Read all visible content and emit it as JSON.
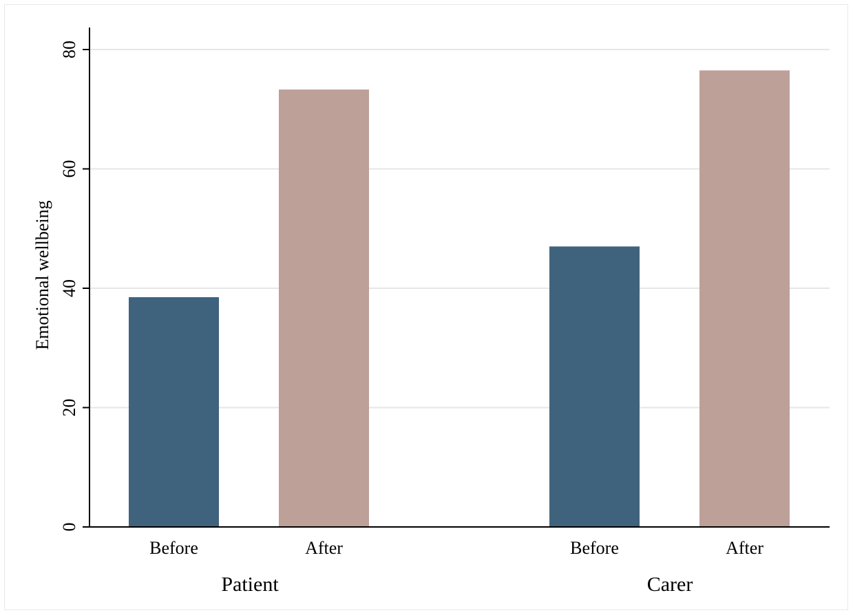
{
  "chart_data": {
    "type": "bar",
    "title": "",
    "xlabel": "",
    "ylabel": "Emotional wellbeing",
    "ylim": [
      0,
      80
    ],
    "yticks": [
      0,
      20,
      40,
      60,
      80
    ],
    "grid": true,
    "groups": [
      {
        "label": "Patient",
        "bars": [
          {
            "label": "Before",
            "value": 38.5,
            "color": "#3f637d"
          },
          {
            "label": "After",
            "value": 73.3,
            "color": "#bda098"
          }
        ]
      },
      {
        "label": "Carer",
        "bars": [
          {
            "label": "Before",
            "value": 47.0,
            "color": "#3f637d"
          },
          {
            "label": "After",
            "value": 76.5,
            "color": "#bda098"
          }
        ]
      }
    ]
  }
}
